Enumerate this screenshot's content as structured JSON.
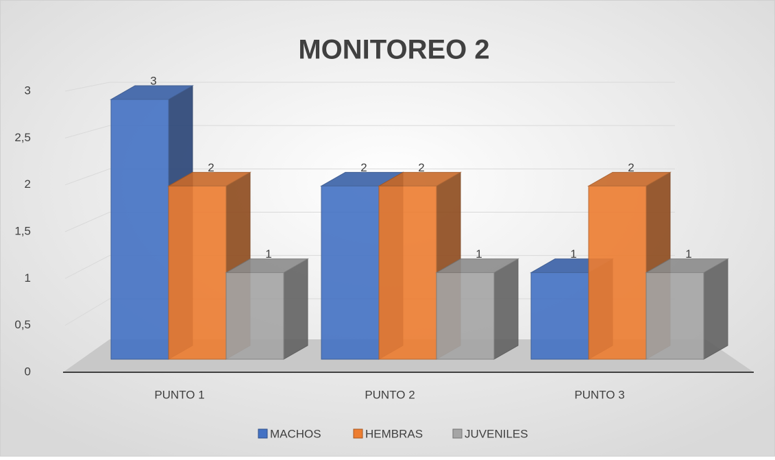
{
  "chart_data": {
    "type": "bar3d",
    "title": "MONITOREO 2",
    "categories": [
      "PUNTO 1",
      "PUNTO 2",
      "PUNTO 3"
    ],
    "series": [
      {
        "name": "MACHOS",
        "color": "#4472c4",
        "values": [
          3,
          2,
          1
        ]
      },
      {
        "name": "HEMBRAS",
        "color": "#ed7d31",
        "values": [
          2,
          2,
          2
        ]
      },
      {
        "name": "JUVENILES",
        "color": "#a5a5a5",
        "values": [
          1,
          1,
          1
        ]
      }
    ],
    "ylim": [
      0,
      3
    ],
    "yticks": [
      0,
      {
        "value": 0.5,
        "label": "0,5"
      },
      1,
      {
        "value": 1.5,
        "label": "1,5"
      },
      2,
      {
        "value": 2.5,
        "label": "2,5"
      },
      3
    ],
    "grid": true,
    "legend": "bottom"
  }
}
